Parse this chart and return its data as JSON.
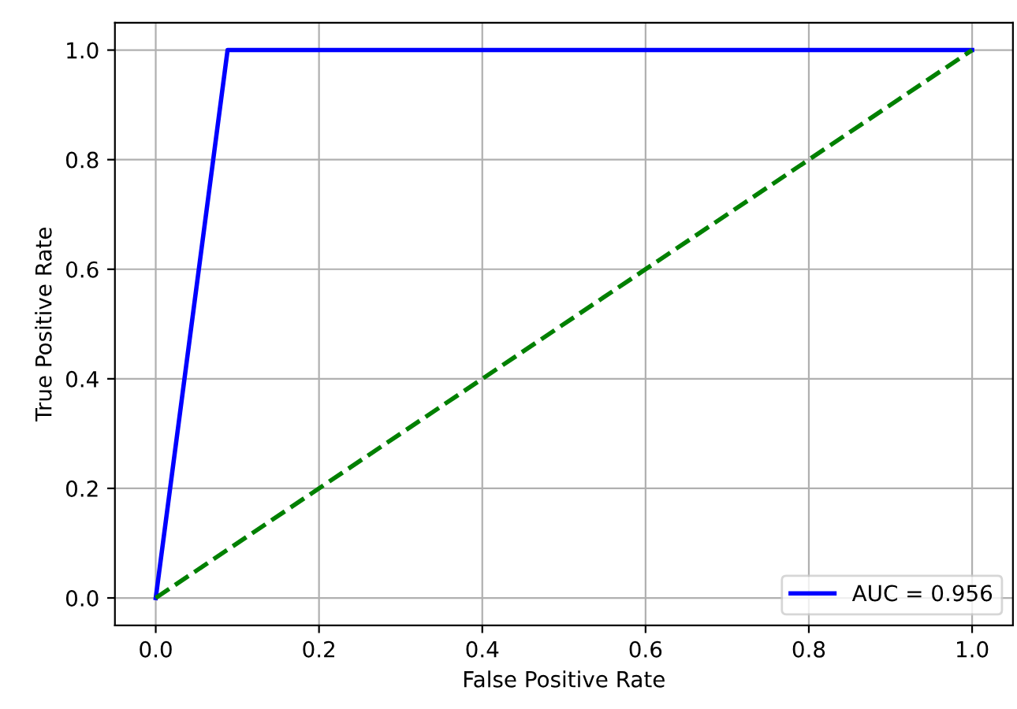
{
  "chart_data": {
    "type": "line",
    "xlabel": "False Positive Rate",
    "ylabel": "True Positive Rate",
    "series": [
      {
        "name": "AUC = 0.956",
        "color": "#0000ff",
        "x": [
          0,
          0.088,
          1
        ],
        "values": [
          0,
          1,
          1
        ],
        "line_style": "solid"
      },
      {
        "color": "#008000",
        "x": [
          0,
          1
        ],
        "values": [
          0,
          1
        ],
        "line_style": "dashed"
      }
    ],
    "xlim": [
      -0.05,
      1.05
    ],
    "ylim": [
      -0.05,
      1.05
    ],
    "xticks": [
      {
        "value": 0,
        "label": "0.0"
      },
      0.2,
      0.4,
      0.6,
      0.8,
      {
        "value": 1,
        "label": "1.0"
      }
    ],
    "yticks": [
      {
        "value": 0,
        "label": "0.0"
      },
      0.2,
      0.4,
      0.6,
      0.8,
      {
        "value": 1,
        "label": "1.0"
      }
    ],
    "grid": true,
    "legend": "lower right"
  }
}
